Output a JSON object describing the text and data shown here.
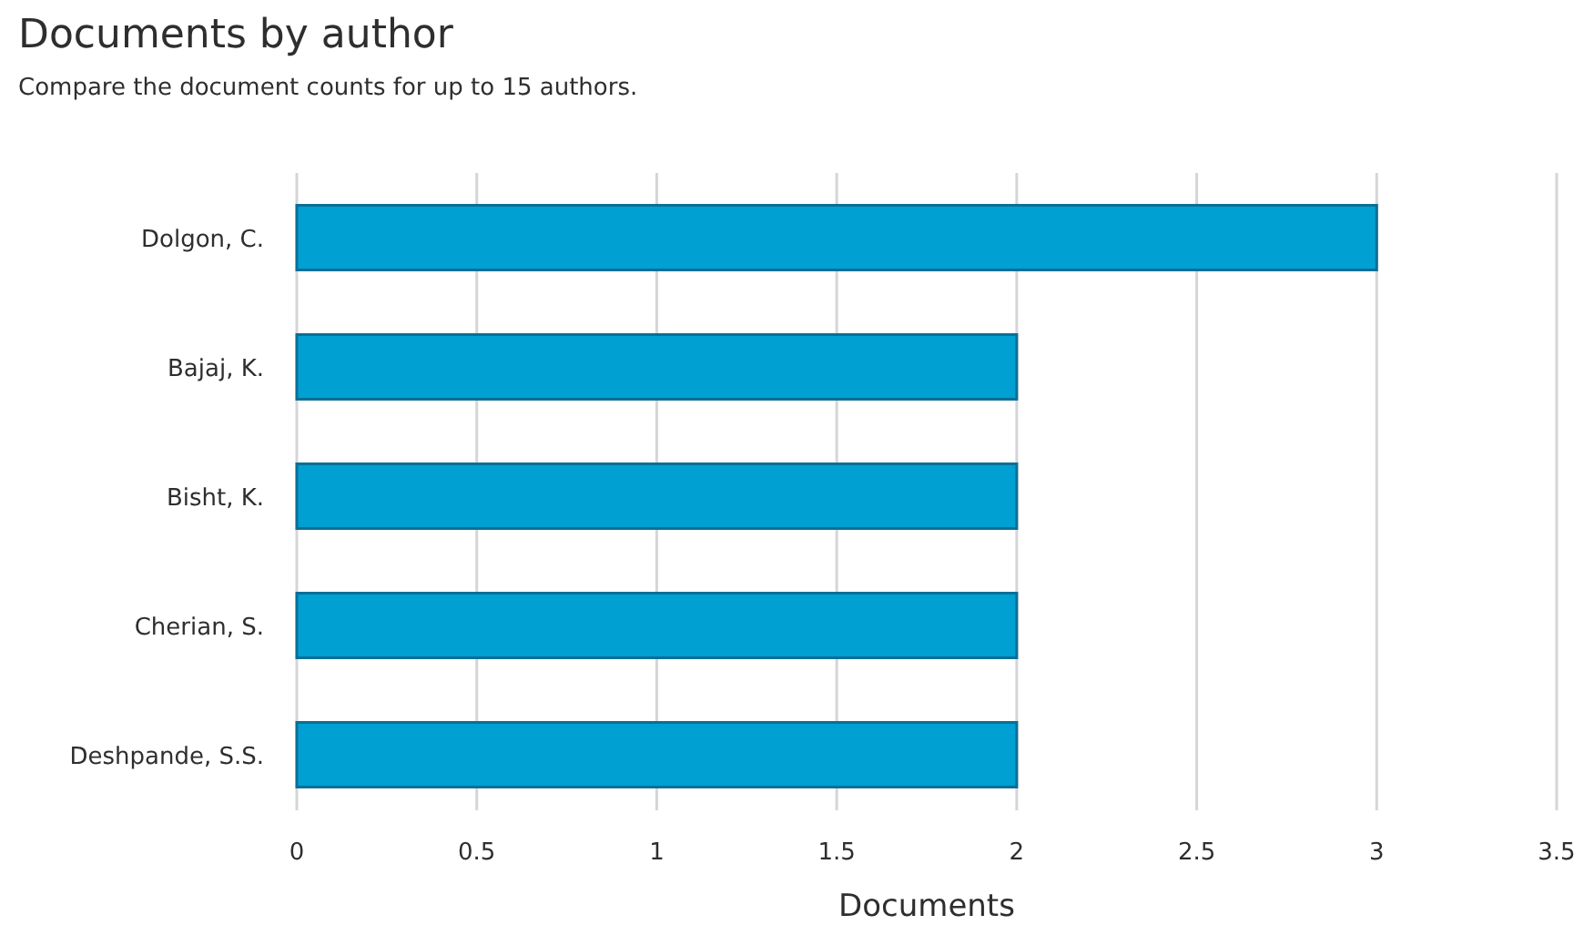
{
  "chart_data": {
    "type": "bar",
    "orientation": "horizontal",
    "title": "Documents by author",
    "subtitle": "Compare the document counts for up to 15 authors.",
    "xlabel": "Documents",
    "categories": [
      "Dolgon, C.",
      "Bajaj, K.",
      "Bisht, K.",
      "Cherian, S.",
      "Deshpande, S.S."
    ],
    "values": [
      3,
      2,
      2,
      2,
      2
    ],
    "color": "#00a0d2",
    "xlim": [
      0,
      3.5
    ],
    "xticks": [
      0,
      0.5,
      1,
      1.5,
      2,
      2.5,
      3,
      3.5
    ],
    "grid": "x"
  }
}
